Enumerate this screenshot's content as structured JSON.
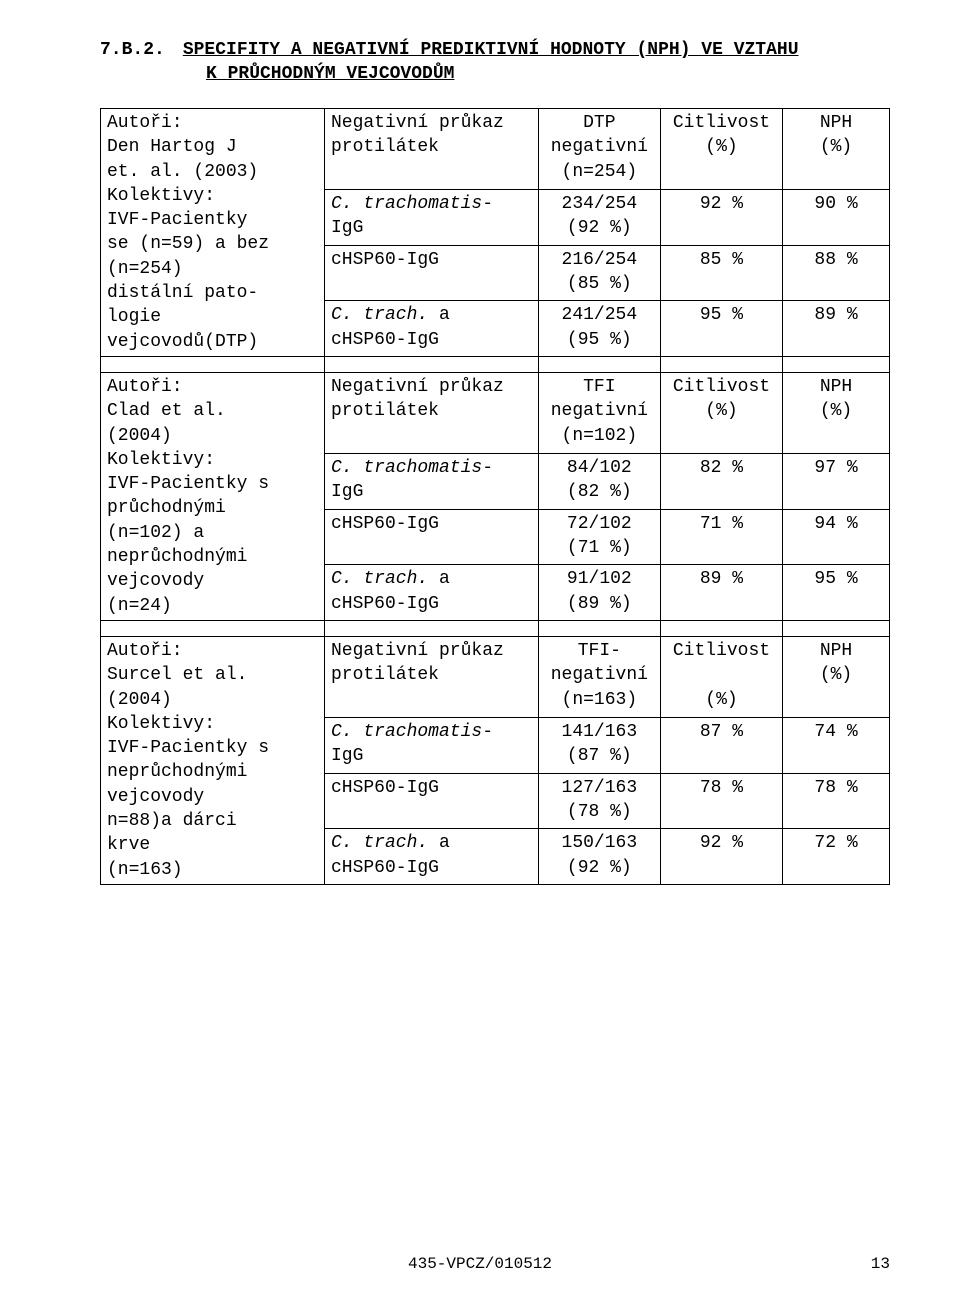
{
  "heading": {
    "number": "7.B.2.",
    "title": "SPECIFITY A NEGATIVNÍ PREDIKTIVNÍ HODNOTY (NPH) VE VZTAHU",
    "subtitle": "K PRŮCHODNÝM VEJCOVODŮM"
  },
  "block1": {
    "leftHeader": "Autoři:\nDen Hartog J\net. al. (2003)",
    "leftBody": "Kolektivy:\nIVF-Pacientky\nse (n=59) a bez\n(n=254)\ndistální pato-\nlogie\nvejcovodů(DTP)",
    "rowH": {
      "test": "Negativní průkaz\nprotilátek",
      "val": "DTP\nnegativní\n(n=254)",
      "cit": "Citlivost\n(%)",
      "nph": "NPH\n(%)"
    },
    "row1": {
      "test_pre": "C. trachomatis",
      "test_suf": "-\nIgG",
      "val": "234/254\n(92 %)",
      "cit": "92 %",
      "nph": "90 %"
    },
    "row2": {
      "test": "cHSP60-IgG",
      "val": "216/254\n(85 %)",
      "cit": "85 %",
      "nph": "88 %"
    },
    "row3": {
      "test_pre": "C. trach.",
      "test_suf": " a\ncHSP60-IgG",
      "val": "241/254\n(95 %)",
      "cit": "95 %",
      "nph": "89 %"
    }
  },
  "block2": {
    "leftHeader": "Autoři:\nClad et al.\n(2004)",
    "leftBody": "Kolektivy:\nIVF-Pacientky s\nprůchodnými\n(n=102) a\nneprůchodnými\nvejcovody\n(n=24)",
    "rowH": {
      "test": "Negativní průkaz\nprotilátek",
      "val": "TFI\nnegativní\n(n=102)",
      "cit": "Citlivost\n(%)",
      "nph": "NPH\n(%)"
    },
    "row1": {
      "test_pre": "C. trachomatis",
      "test_suf": "-\nIgG",
      "val": "84/102\n(82 %)",
      "cit": "82 %",
      "nph": "97 %"
    },
    "row2": {
      "test": "cHSP60-IgG",
      "val": "72/102\n(71 %)",
      "cit": "71 %",
      "nph": "94 %"
    },
    "row3": {
      "test_pre": "C. trach.",
      "test_suf": " a\ncHSP60-IgG",
      "val": "91/102\n(89 %)",
      "cit": "89 %",
      "nph": "95 %"
    }
  },
  "block3": {
    "leftHeader": "Autoři:\nSurcel et al.\n(2004)",
    "leftBody": "Kolektivy:\nIVF-Pacientky s\nneprůchodnými\nvejcovody\nn=88)a dárci\nkrve\n(n=163)",
    "rowH": {
      "test": "Negativní průkaz\nprotilátek",
      "val": "TFI-\nnegativní\n(n=163)",
      "cit": "Citlivost\n\n(%)",
      "nph": "NPH\n(%)"
    },
    "row1": {
      "test_pre": "C. trachomatis",
      "test_suf": "-\nIgG",
      "val": "141/163\n(87 %)",
      "cit": "87 %",
      "nph": "74 %"
    },
    "row2": {
      "test": "cHSP60-IgG",
      "val": "127/163\n(78 %)",
      "cit": "78 %",
      "nph": "78 %"
    },
    "row3": {
      "test_pre": "C. trach.",
      "test_suf": " a\ncHSP60-IgG",
      "val": "150/163\n(92 %)",
      "cit": "92 %",
      "nph": "72 %"
    }
  },
  "footer": {
    "code": "435-VPCZ/010512",
    "page": "13"
  }
}
